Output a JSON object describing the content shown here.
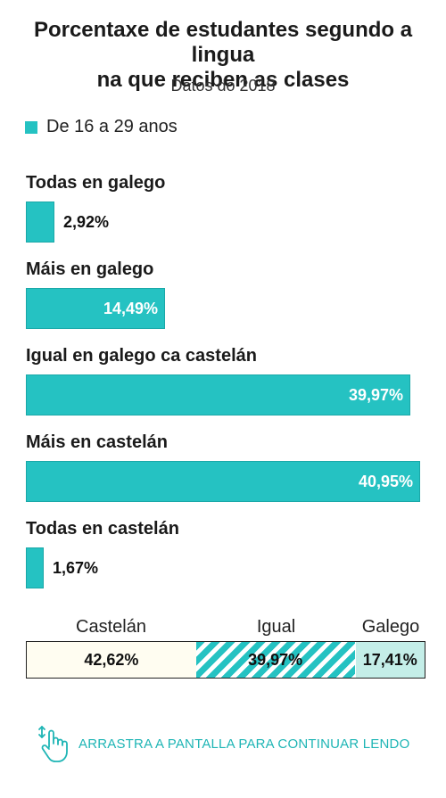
{
  "header": {
    "title_line1": "Porcentaxe de estudantes segundo a lingua",
    "title_line2": "na que reciben as clases",
    "subtitle": "Datos do 2018"
  },
  "legend": {
    "label": "De 16 a 29 anos",
    "color": "#25c2c2"
  },
  "chart_data": [
    {
      "type": "bar",
      "orientation": "horizontal",
      "title": "Porcentaxe de estudantes segundo a lingua na que reciben as clases",
      "subtitle": "Datos do 2018",
      "series": [
        {
          "name": "De 16 a 29 anos",
          "color": "#25c2c2"
        }
      ],
      "categories": [
        "Todas en galego",
        "Máis en galego",
        "Igual en galego ca castelán",
        "Máis en castelán",
        "Todas en castelán"
      ],
      "values": [
        2.92,
        14.49,
        39.97,
        40.95,
        1.67
      ],
      "value_labels": [
        "2,92%",
        "14,49%",
        "39,97%",
        "40,95%",
        "1,67%"
      ],
      "xlim": [
        0,
        42
      ],
      "grid": false
    },
    {
      "type": "bar",
      "orientation": "stacked-horizontal",
      "categories": [
        "Castelán",
        "Igual",
        "Galego"
      ],
      "values": [
        42.62,
        39.97,
        17.41
      ],
      "value_labels": [
        "42,62%",
        "39,97%",
        "17,41%"
      ],
      "colors": [
        "#fffdf1",
        "#25c2c2",
        "#c4eee8"
      ]
    }
  ],
  "footer": {
    "text": "ARRASTRA A PANTALLA PARA CONTINUAR LENDO",
    "icon": "swipe-hand-icon",
    "color": "#1eb5b5"
  }
}
